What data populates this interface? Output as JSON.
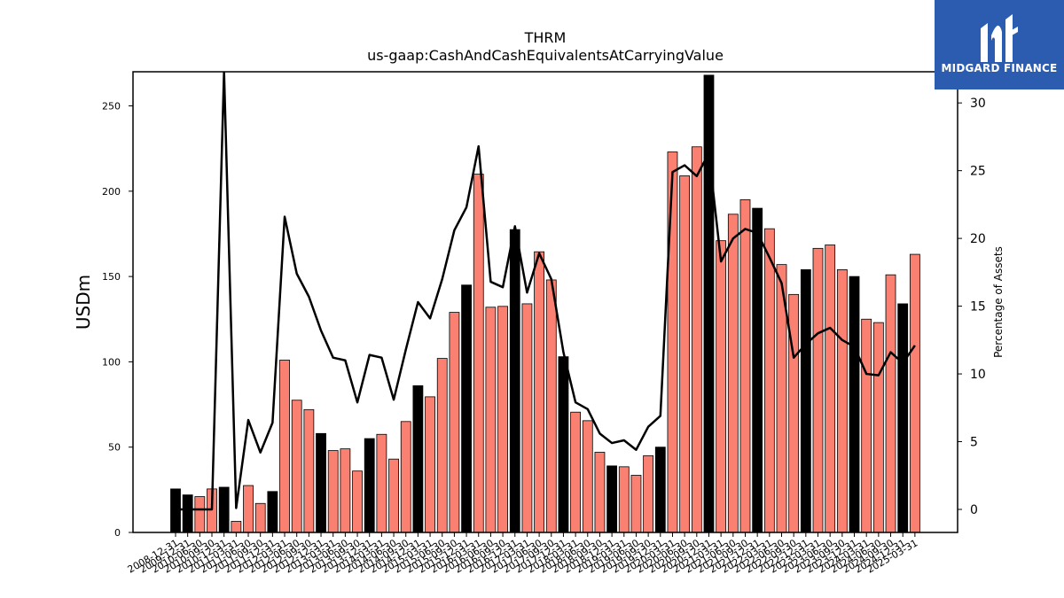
{
  "logo": {
    "text": "MIDGARD FINANCE",
    "color": "#2b5cb0"
  },
  "chart_data": {
    "type": "bar",
    "title": "THRM",
    "subtitle": "us-gaap:CashAndCashEquivalentsAtCarryingValue",
    "ylabel": "USDm",
    "y2label": "Percentage of Assets",
    "ylim": [
      0,
      270
    ],
    "y2lim": [
      -1.7,
      32.3
    ],
    "yticks": [
      0,
      50,
      100,
      150,
      200,
      250
    ],
    "y2ticks": [
      0,
      5,
      10,
      15,
      20,
      25,
      30
    ],
    "bar_color": "#fa8072",
    "highlight_color": "#000000",
    "line_color": "#000000",
    "categories": [
      "2008-12-31",
      "2009-12-31",
      "2010-06-30",
      "2010-09-30",
      "2010-12-31",
      "2011-03-31",
      "2011-06-30",
      "2011-09-30",
      "2011-12-31",
      "2012-03-31",
      "2012-06-30",
      "2012-09-30",
      "2012-12-31",
      "2013-03-31",
      "2013-06-30",
      "2013-09-30",
      "2013-12-31",
      "2014-03-31",
      "2014-06-30",
      "2014-09-30",
      "2014-12-31",
      "2015-03-31",
      "2015-06-30",
      "2015-09-30",
      "2015-12-31",
      "2016-03-31",
      "2016-06-30",
      "2016-09-30",
      "2016-12-31",
      "2017-03-31",
      "2017-06-30",
      "2017-09-30",
      "2017-12-31",
      "2018-03-31",
      "2018-06-30",
      "2018-09-30",
      "2018-12-31",
      "2019-03-31",
      "2019-06-30",
      "2019-09-30",
      "2019-12-31",
      "2020-03-31",
      "2020-06-30",
      "2020-09-30",
      "2020-12-31",
      "2021-03-31",
      "2021-06-30",
      "2021-09-30",
      "2021-12-31",
      "2022-03-31",
      "2022-06-30",
      "2022-09-30",
      "2022-12-31",
      "2023-03-31",
      "2023-06-30",
      "2023-09-30",
      "2023-12-31",
      "2024-03-31",
      "2024-06-30",
      "2024-09-30",
      "2024-12-31",
      "2025-03-31"
    ],
    "values": [
      25.5,
      22,
      21,
      25.5,
      26.5,
      6.5,
      27.5,
      17,
      24,
      101,
      77.5,
      72,
      58,
      48,
      49,
      36,
      55,
      57.5,
      43,
      65,
      86,
      79.5,
      102,
      129,
      145,
      210,
      132,
      132.5,
      177.5,
      134,
      164.5,
      148,
      103,
      70.5,
      65.5,
      47,
      39,
      38.5,
      33.5,
      45,
      50,
      223,
      209,
      226,
      268,
      171,
      186.5,
      195,
      190,
      178,
      157,
      139.5,
      154,
      166.5,
      168.5,
      154,
      150,
      125,
      123,
      151,
      134,
      163
    ],
    "highlight": [
      true,
      true,
      false,
      false,
      true,
      false,
      false,
      false,
      true,
      false,
      false,
      false,
      true,
      false,
      false,
      false,
      true,
      false,
      false,
      false,
      true,
      false,
      false,
      false,
      true,
      false,
      false,
      false,
      true,
      false,
      false,
      false,
      true,
      false,
      false,
      false,
      true,
      false,
      false,
      false,
      true,
      false,
      false,
      false,
      true,
      false,
      false,
      false,
      true,
      false,
      false,
      false,
      true,
      false,
      false,
      false,
      true,
      false,
      false,
      false,
      true,
      false
    ],
    "pct_of_assets": [
      0.0,
      0.0,
      0.0,
      0.0,
      32.3,
      0.1,
      6.6,
      4.2,
      6.4,
      21.6,
      17.4,
      15.7,
      13.2,
      11.2,
      11.0,
      7.9,
      11.4,
      11.2,
      8.1,
      11.8,
      15.3,
      14.1,
      17.0,
      20.6,
      22.3,
      26.8,
      16.8,
      16.4,
      20.9,
      16.0,
      18.9,
      17.0,
      11.6,
      7.9,
      7.4,
      5.6,
      4.9,
      5.1,
      4.4,
      6.1,
      6.9,
      24.9,
      25.4,
      24.6,
      26.3,
      18.3,
      20.0,
      20.7,
      20.4,
      18.6,
      16.7,
      11.2,
      12.2,
      13.0,
      13.4,
      12.5,
      12.0,
      10.0,
      9.9,
      11.6,
      10.8,
      12.1
    ]
  }
}
